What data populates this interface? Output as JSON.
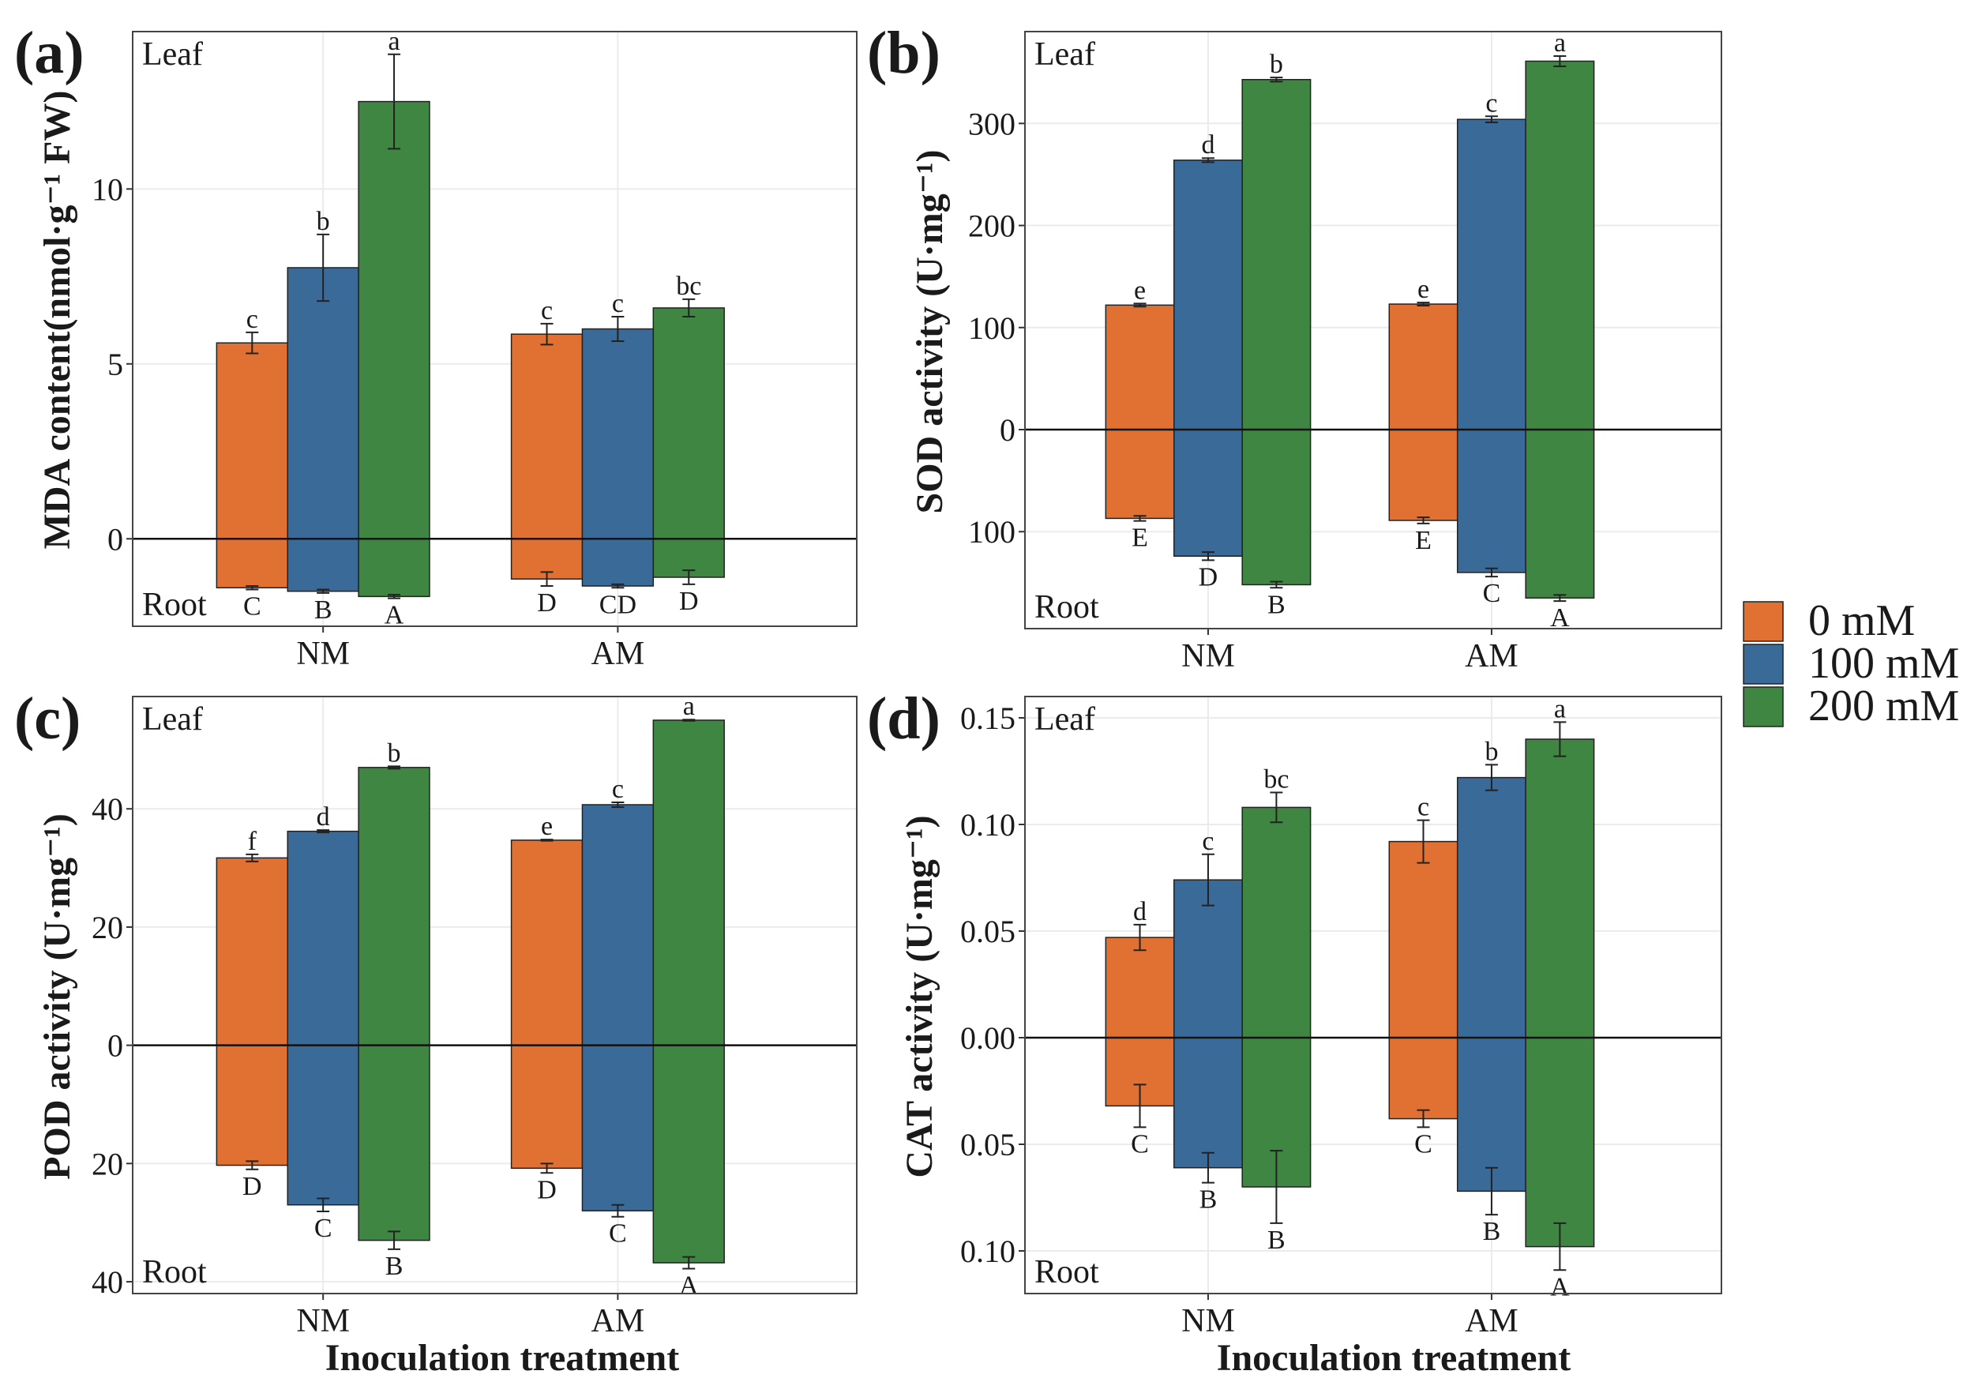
{
  "legend": {
    "items": [
      {
        "label": "0 mM",
        "color": "#E07133"
      },
      {
        "label": "100 mM",
        "color": "#3A6A98"
      },
      {
        "label": "200 mM",
        "color": "#3F8642"
      }
    ]
  },
  "chart_data": [
    {
      "type": "bar",
      "panel_label": "(a)",
      "ylabel": "MDA content(nmol·g⁻¹ FW)",
      "xlabel": "",
      "top_note": "Leaf",
      "bottom_note": "Root",
      "categories": [
        "NM",
        "AM"
      ],
      "ylim": [
        -2.5,
        14.5
      ],
      "ticks": [
        {
          "v": 0,
          "label": "0"
        },
        {
          "v": 5,
          "label": "5"
        },
        {
          "v": 10,
          "label": "10"
        }
      ],
      "series": [
        {
          "name": "0 mM",
          "leaf": [
            5.6,
            5.85
          ],
          "leaf_err": [
            0.3,
            0.3
          ],
          "leaf_letters": [
            "c",
            "c"
          ],
          "root": [
            -1.4,
            -1.15
          ],
          "root_err": [
            0.05,
            0.2
          ],
          "root_letters": [
            "C",
            "D"
          ]
        },
        {
          "name": "100 mM",
          "leaf": [
            7.75,
            6.0
          ],
          "leaf_err": [
            0.95,
            0.35
          ],
          "leaf_letters": [
            "b",
            "c"
          ],
          "root": [
            -1.5,
            -1.35
          ],
          "root_err": [
            0.05,
            0.05
          ],
          "root_letters": [
            "B",
            "CD"
          ]
        },
        {
          "name": "200 mM",
          "leaf": [
            12.5,
            6.6
          ],
          "leaf_err": [
            1.35,
            0.25
          ],
          "leaf_letters": [
            "a",
            "bc"
          ],
          "root": [
            -1.65,
            -1.1
          ],
          "root_err": [
            0.05,
            0.2
          ],
          "root_letters": [
            "A",
            "D"
          ]
        }
      ]
    },
    {
      "type": "bar",
      "panel_label": "(b)",
      "ylabel": "SOD activity (U·mg⁻¹)",
      "xlabel": "",
      "top_note": "Leaf",
      "bottom_note": "Root",
      "categories": [
        "NM",
        "AM"
      ],
      "ylim": [
        -195,
        390
      ],
      "ticks": [
        {
          "v": -100,
          "label": "100"
        },
        {
          "v": 0,
          "label": "0"
        },
        {
          "v": 100,
          "label": "100"
        },
        {
          "v": 200,
          "label": "200"
        },
        {
          "v": 300,
          "label": "300"
        }
      ],
      "series": [
        {
          "name": "0 mM",
          "leaf": [
            122,
            123
          ],
          "leaf_err": [
            1.5,
            1.5
          ],
          "leaf_letters": [
            "e",
            "e"
          ],
          "root": [
            -87,
            -89
          ],
          "root_err": [
            2.5,
            3
          ],
          "root_letters": [
            "E",
            "E"
          ]
        },
        {
          "name": "100 mM",
          "leaf": [
            264,
            304
          ],
          "leaf_err": [
            2,
            3
          ],
          "leaf_letters": [
            "d",
            "c"
          ],
          "root": [
            -124,
            -140
          ],
          "root_err": [
            4,
            4
          ],
          "root_letters": [
            "D",
            "C"
          ]
        },
        {
          "name": "200 mM",
          "leaf": [
            343,
            361
          ],
          "leaf_err": [
            2,
            5
          ],
          "leaf_letters": [
            "b",
            "a"
          ],
          "root": [
            -152,
            -165
          ],
          "root_err": [
            3,
            3
          ],
          "root_letters": [
            "B",
            "A"
          ]
        }
      ]
    },
    {
      "type": "bar",
      "panel_label": "(c)",
      "ylabel": "POD activity (U·mg⁻¹)",
      "xlabel": "Inoculation treatment",
      "top_note": "Leaf",
      "bottom_note": "Root",
      "categories": [
        "NM",
        "AM"
      ],
      "ylim": [
        -42,
        59
      ],
      "ticks": [
        {
          "v": -40,
          "label": "40"
        },
        {
          "v": -20,
          "label": "20"
        },
        {
          "v": 0,
          "label": "0"
        },
        {
          "v": 20,
          "label": "20"
        },
        {
          "v": 40,
          "label": "40"
        }
      ],
      "series": [
        {
          "name": "0 mM",
          "leaf": [
            31.7,
            34.7
          ],
          "leaf_err": [
            0.6,
            0.1
          ],
          "leaf_letters": [
            "f",
            "e"
          ],
          "root": [
            -20.3,
            -20.8
          ],
          "root_err": [
            0.7,
            0.8
          ],
          "root_letters": [
            "D",
            "D"
          ]
        },
        {
          "name": "100 mM",
          "leaf": [
            36.2,
            40.7
          ],
          "leaf_err": [
            0.2,
            0.4
          ],
          "leaf_letters": [
            "d",
            "c"
          ],
          "root": [
            -27.0,
            -28.0
          ],
          "root_err": [
            1.1,
            1.0
          ],
          "root_letters": [
            "C",
            "C"
          ]
        },
        {
          "name": "200 mM",
          "leaf": [
            47.0,
            55.0
          ],
          "leaf_err": [
            0.2,
            0.1
          ],
          "leaf_letters": [
            "b",
            "a"
          ],
          "root": [
            -33.0,
            -36.8
          ],
          "root_err": [
            1.5,
            1.0
          ],
          "root_letters": [
            "B",
            "A"
          ]
        }
      ]
    },
    {
      "type": "bar",
      "panel_label": "(d)",
      "ylabel": "CAT activity (U·mg⁻¹)",
      "xlabel": "Inoculation treatment",
      "top_note": "Leaf",
      "bottom_note": "Root",
      "categories": [
        "NM",
        "AM"
      ],
      "ylim": [
        -0.12,
        0.16
      ],
      "ticks": [
        {
          "v": -0.1,
          "label": "0.10"
        },
        {
          "v": -0.05,
          "label": "0.05"
        },
        {
          "v": 0,
          "label": "0.00"
        },
        {
          "v": 0.05,
          "label": "0.05"
        },
        {
          "v": 0.1,
          "label": "0.10"
        },
        {
          "v": 0.15,
          "label": "0.15"
        }
      ],
      "series": [
        {
          "name": "0 mM",
          "leaf": [
            0.047,
            0.092
          ],
          "leaf_err": [
            0.006,
            0.01
          ],
          "leaf_letters": [
            "d",
            "c"
          ],
          "root": [
            -0.032,
            -0.038
          ],
          "root_err": [
            0.01,
            0.004
          ],
          "root_letters": [
            "C",
            "C"
          ]
        },
        {
          "name": "100 mM",
          "leaf": [
            0.074,
            0.122
          ],
          "leaf_err": [
            0.012,
            0.006
          ],
          "leaf_letters": [
            "c",
            "b"
          ],
          "root": [
            -0.061,
            -0.072
          ],
          "root_err": [
            0.007,
            0.011
          ],
          "root_letters": [
            "B",
            "B"
          ]
        },
        {
          "name": "200 mM",
          "leaf": [
            0.108,
            0.14
          ],
          "leaf_err": [
            0.007,
            0.008
          ],
          "leaf_letters": [
            "bc",
            "a"
          ],
          "root": [
            -0.07,
            -0.098
          ],
          "root_err": [
            0.017,
            0.011
          ],
          "root_letters": [
            "B",
            "A"
          ]
        }
      ]
    }
  ]
}
